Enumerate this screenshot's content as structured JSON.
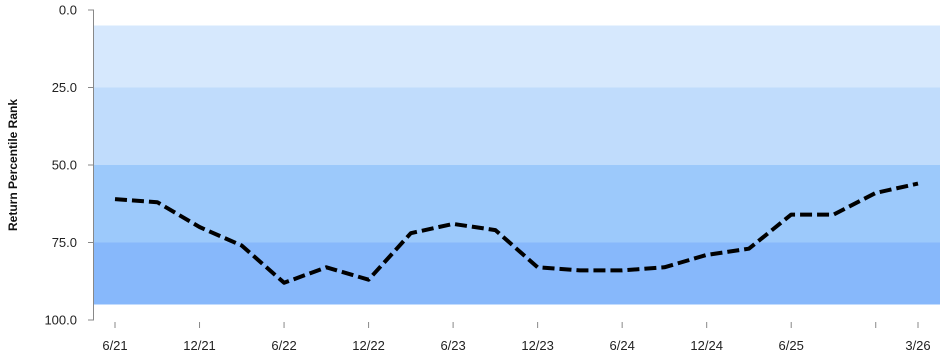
{
  "chart_data": {
    "type": "line",
    "title": "",
    "xlabel": "",
    "ylabel": "Return Percentile Rank",
    "y_axis_inverted": true,
    "ylim": [
      0,
      100
    ],
    "y_ticks": [
      {
        "value": 0,
        "label": "0.0"
      },
      {
        "value": 25,
        "label": "25.0"
      },
      {
        "value": 50,
        "label": "50.0"
      },
      {
        "value": 75,
        "label": "75.0"
      },
      {
        "value": 100,
        "label": "100.0"
      }
    ],
    "bands": [
      {
        "from": 5,
        "to": 25,
        "color": "#d6e8fd"
      },
      {
        "from": 25,
        "to": 50,
        "color": "#c0dcfc"
      },
      {
        "from": 50,
        "to": 75,
        "color": "#9cc9fb"
      },
      {
        "from": 75,
        "to": 95,
        "color": "#87b8fb"
      }
    ],
    "x_ticks": [
      {
        "date": "2021-06",
        "label": "6/21"
      },
      {
        "date": "2021-12",
        "label": "12/21"
      },
      {
        "date": "2022-06",
        "label": "6/22"
      },
      {
        "date": "2022-12",
        "label": "12/22"
      },
      {
        "date": "2023-06",
        "label": "6/23"
      },
      {
        "date": "2023-12",
        "label": "12/23"
      },
      {
        "date": "2024-06",
        "label": "6/24"
      },
      {
        "date": "2024-12",
        "label": "12/24"
      },
      {
        "date": "2025-06",
        "label": "6/25"
      },
      {
        "date": "2025-12",
        "label": ""
      },
      {
        "date": "2026-03",
        "label": "3/26"
      }
    ],
    "series": [
      {
        "color": "#000000",
        "style": "dashed",
        "points": [
          {
            "x": "2021-06",
            "y": 61
          },
          {
            "x": "2021-09",
            "y": 62
          },
          {
            "x": "2021-12",
            "y": 70
          },
          {
            "x": "2022-03",
            "y": 76
          },
          {
            "x": "2022-06",
            "y": 88
          },
          {
            "x": "2022-09",
            "y": 83
          },
          {
            "x": "2022-12",
            "y": 87
          },
          {
            "x": "2023-03",
            "y": 72
          },
          {
            "x": "2023-06",
            "y": 69
          },
          {
            "x": "2023-09",
            "y": 71
          },
          {
            "x": "2023-12",
            "y": 83
          },
          {
            "x": "2024-03",
            "y": 84
          },
          {
            "x": "2024-06",
            "y": 84
          },
          {
            "x": "2024-09",
            "y": 83
          },
          {
            "x": "2024-12",
            "y": 79
          },
          {
            "x": "2025-03",
            "y": 77
          },
          {
            "x": "2025-06",
            "y": 66
          },
          {
            "x": "2025-09",
            "y": 66
          },
          {
            "x": "2025-12",
            "y": 59
          },
          {
            "x": "2026-03",
            "y": 56
          }
        ]
      }
    ],
    "grid": false,
    "legend": "none"
  }
}
